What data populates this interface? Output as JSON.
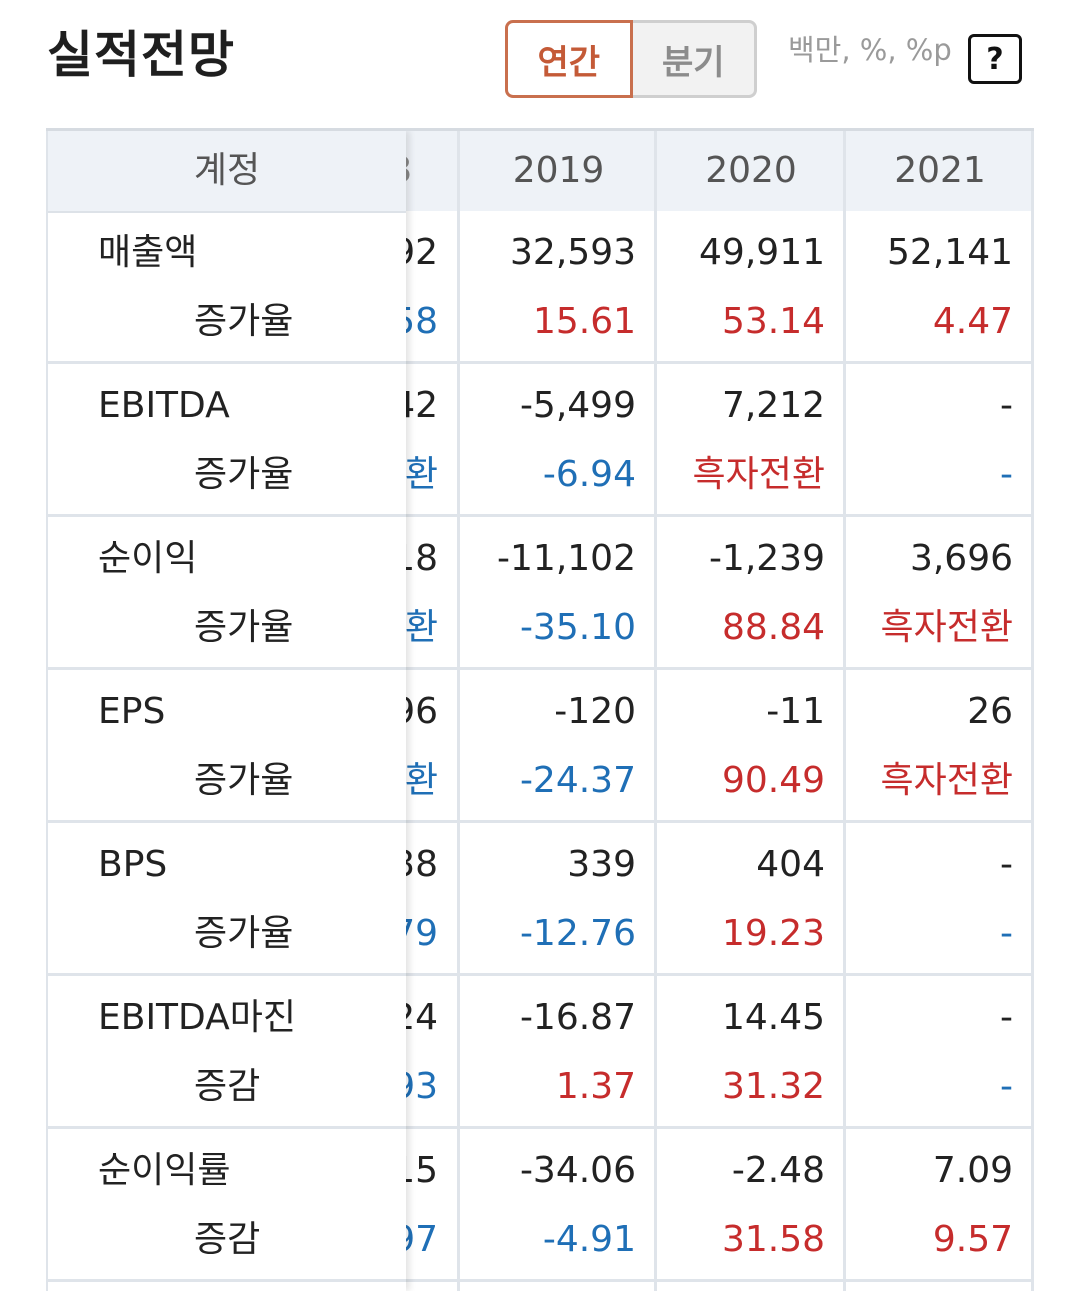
{
  "header": {
    "title": "실적전망",
    "toggle": {
      "annual_label": "연간",
      "quarterly_label": "분기"
    },
    "unit": "백만, %, %p",
    "help_label": "?"
  },
  "table": {
    "account_header": "계정",
    "years": [
      "2019",
      "2020",
      "2021"
    ],
    "partial_header": "3",
    "rows": [
      {
        "label": "매출액",
        "sub_label": "증가율",
        "partial_main": "92",
        "partial_sub": "58",
        "main": [
          "32,593",
          "49,911",
          "52,141"
        ],
        "sub": [
          "15.61",
          "53.14",
          "4.47"
        ]
      },
      {
        "label": "EBITDA",
        "sub_label": "증가율",
        "partial_main": "42",
        "partial_sub": "환",
        "main": [
          "-5,499",
          "7,212",
          "-"
        ],
        "sub": [
          "-6.94",
          "흑자전환",
          "-"
        ]
      },
      {
        "label": "순이익",
        "sub_label": "증가율",
        "partial_main": "18",
        "partial_sub": "환",
        "main": [
          "-11,102",
          "-1,239",
          "3,696"
        ],
        "sub": [
          "-35.10",
          "88.84",
          "흑자전환"
        ]
      },
      {
        "label": "EPS",
        "sub_label": "증가율",
        "partial_main": "96",
        "partial_sub": "환",
        "main": [
          "-120",
          "-11",
          "26"
        ],
        "sub": [
          "-24.37",
          "90.49",
          "흑자전환"
        ]
      },
      {
        "label": "BPS",
        "sub_label": "증가율",
        "partial_main": "38",
        "partial_sub": "79",
        "main": [
          "339",
          "404",
          "-"
        ],
        "sub": [
          "-12.76",
          "19.23",
          "-"
        ]
      },
      {
        "label": "EBITDA마진",
        "sub_label": "증감",
        "partial_main": "24",
        "partial_sub": "93",
        "main": [
          "-16.87",
          "14.45",
          "-"
        ],
        "sub": [
          "1.37",
          "31.32",
          "-"
        ]
      },
      {
        "label": "순이익률",
        "sub_label": "증감",
        "partial_main": "15",
        "partial_sub": "97",
        "main": [
          "-34.06",
          "-2.48",
          "7.09"
        ],
        "sub": [
          "-4.91",
          "31.58",
          "9.57"
        ]
      }
    ]
  },
  "colors": {
    "positive": "#c62c2c",
    "negative": "#1f6fb6",
    "neutral": "#222222",
    "accent": "#c45a37"
  }
}
